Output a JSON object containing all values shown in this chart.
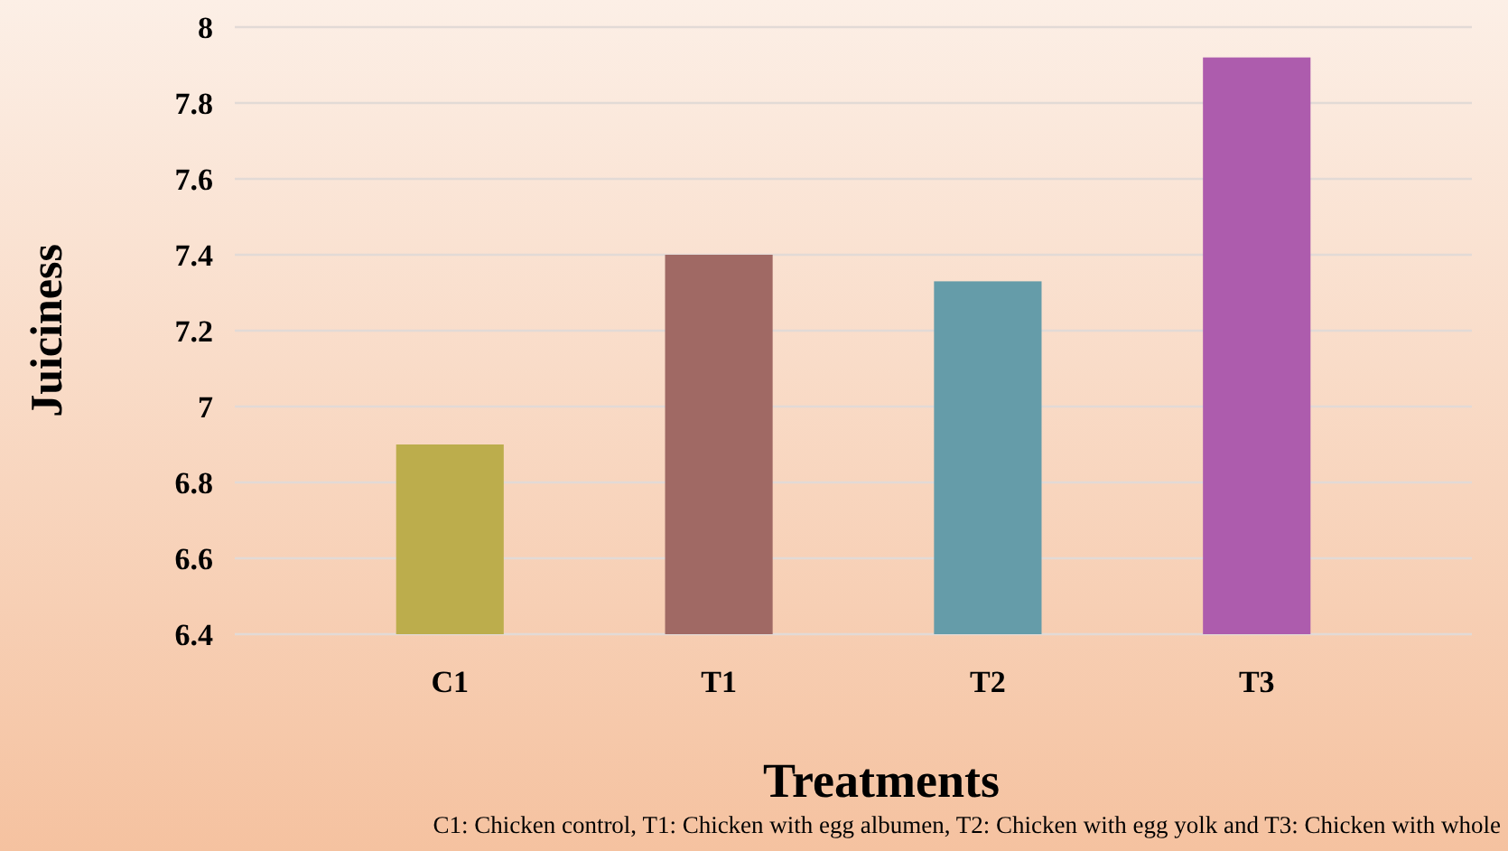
{
  "chart_data": {
    "type": "bar",
    "xlabel": "Treatments",
    "ylabel": "Juiciness",
    "categories": [
      "C1",
      "T1",
      "T2",
      "T3"
    ],
    "values": [
      6.9,
      7.4,
      7.33,
      7.92
    ],
    "colors": [
      "#bcad4c",
      "#a06964",
      "#659ca9",
      "#ad5cad"
    ],
    "ylim": [
      6.4,
      8
    ],
    "yticks": [
      6.4,
      6.6,
      6.8,
      7,
      7.2,
      7.4,
      7.6,
      7.8,
      8
    ],
    "grid": "y",
    "annotations": [
      "C1: Chicken control, T1: Chicken with egg albumen, T2: Chicken with egg yolk and T3: Chicken with whole"
    ]
  }
}
